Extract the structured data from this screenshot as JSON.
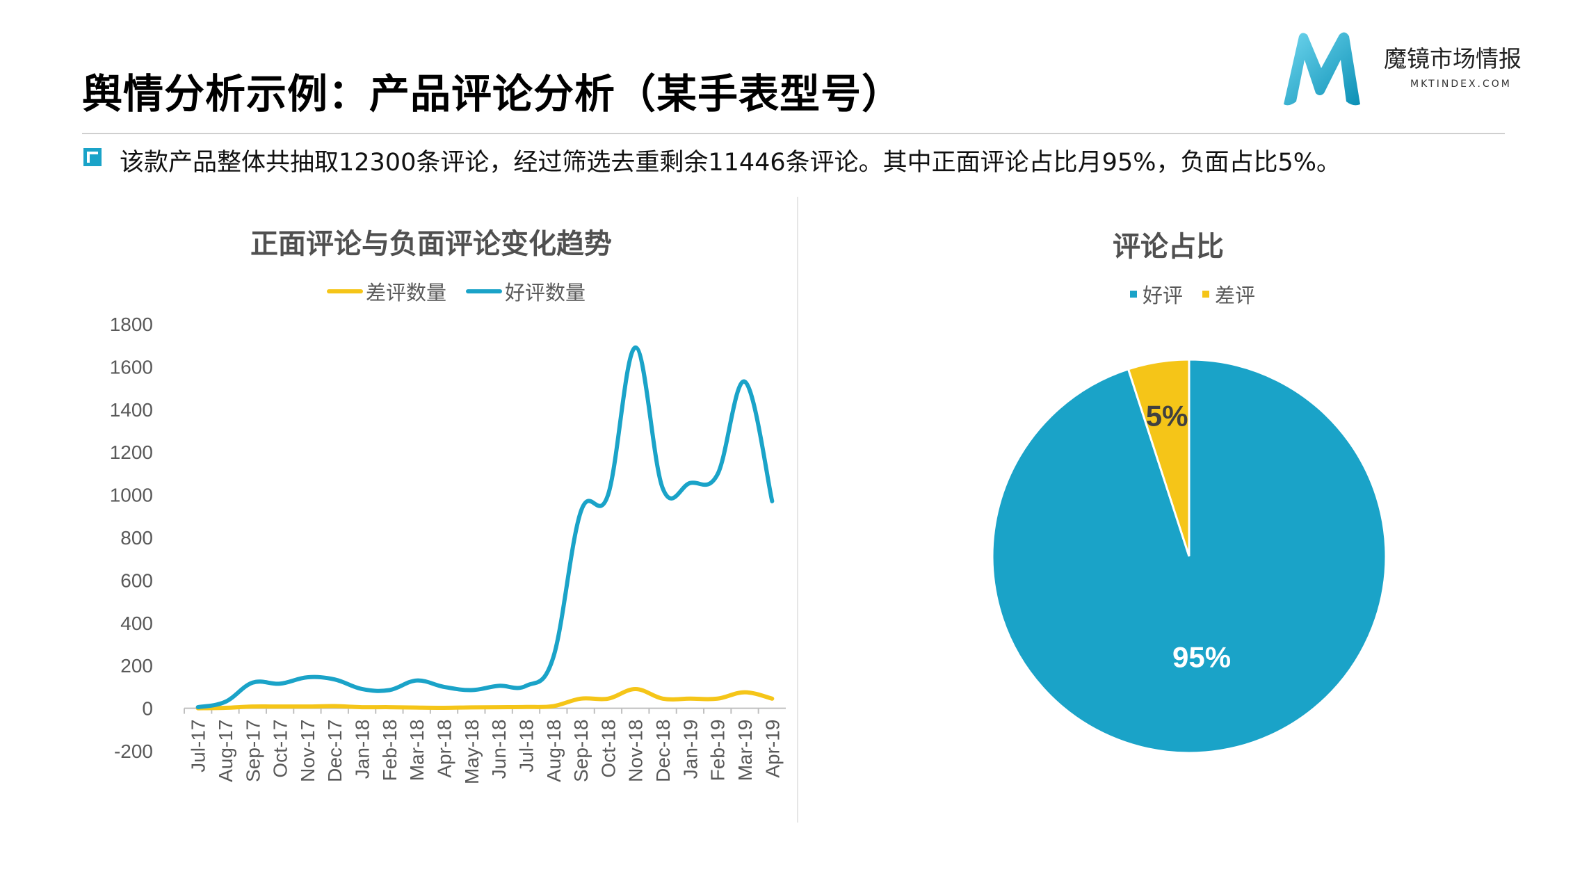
{
  "page": {
    "title": "舆情分析示例：产品评论分析（某手表型号）",
    "summary": "该款产品整体共抽取12300条评论，经过筛选去重剩余11446条评论。其中正面评论占比月95%，负面占比5%。",
    "logo_cn": "魔镜市场情报",
    "logo_en": "MKTINDEX.COM"
  },
  "colors": {
    "positive": "#1aa3c8",
    "negative": "#f5c518",
    "logo_dark": "#0a8fb5",
    "logo_light": "#5fd0ea"
  },
  "chart_data": [
    {
      "type": "line",
      "title": "正面评论与负面评论变化趋势",
      "categories": [
        "Jul-17",
        "Aug-17",
        "Sep-17",
        "Oct-17",
        "Nov-17",
        "Dec-17",
        "Jan-18",
        "Feb-18",
        "Mar-18",
        "Apr-18",
        "May-18",
        "Jun-18",
        "Jul-18",
        "Aug-18",
        "Sep-18",
        "Oct-18",
        "Nov-18",
        "Dec-18",
        "Jan-19",
        "Feb-19",
        "Mar-19",
        "Apr-19"
      ],
      "series": [
        {
          "name": "差评数量",
          "color": "#f5c518",
          "values": [
            0,
            2,
            8,
            8,
            8,
            10,
            5,
            5,
            3,
            2,
            4,
            5,
            6,
            10,
            45,
            45,
            90,
            45,
            45,
            45,
            75,
            45
          ]
        },
        {
          "name": "好评数量",
          "color": "#1aa3c8",
          "values": [
            5,
            30,
            120,
            115,
            145,
            135,
            90,
            85,
            130,
            100,
            85,
            105,
            105,
            240,
            920,
            1000,
            1690,
            1030,
            1055,
            1095,
            1530,
            970
          ]
        }
      ],
      "ylim": [
        -200,
        1800
      ],
      "yticks": [
        -200,
        0,
        200,
        400,
        600,
        800,
        1000,
        1200,
        1400,
        1600,
        1800
      ],
      "legend": "top",
      "grid": false
    },
    {
      "type": "pie",
      "title": "评论占比",
      "slices": [
        {
          "name": "好评",
          "value": 95,
          "label": "95%",
          "color": "#1aa3c8"
        },
        {
          "name": "差评",
          "value": 5,
          "label": "5%",
          "color": "#f5c518"
        }
      ],
      "legend": "top"
    }
  ]
}
